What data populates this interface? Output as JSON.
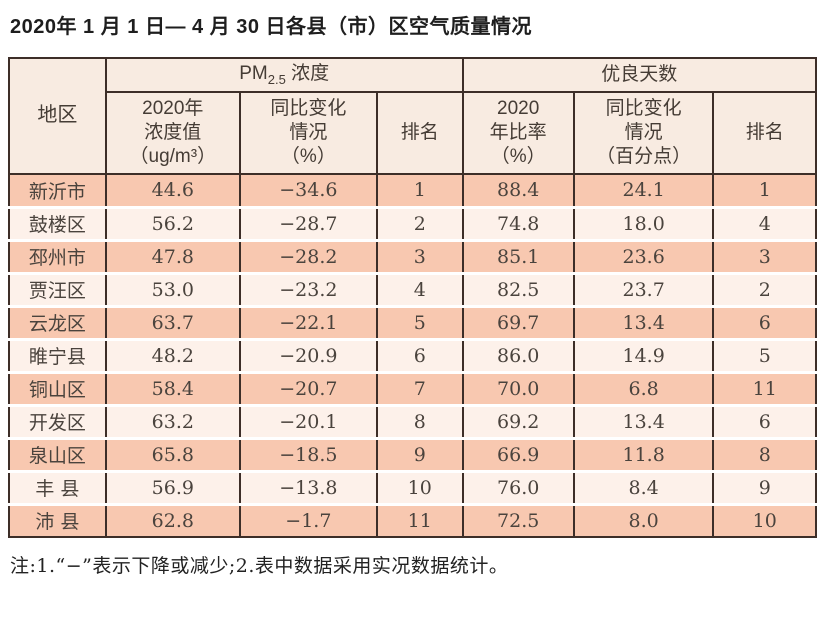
{
  "title": "2020年 1 月 1 日— 4 月 30 日各县（市）区空气质量情况",
  "table": {
    "region_header": "地区",
    "pm_group": {
      "base": "PM",
      "sub": "2.5",
      "label": " 浓度"
    },
    "good_days_header": "优良天数",
    "sub_headers": {
      "pm_value": "2020年\n浓度值\n（ug/m³）",
      "pm_change": "同比变化\n情况\n（%）",
      "pm_rank": "排名",
      "days_rate": "2020\n年比率\n（%）",
      "days_change": "同比变化\n情况\n（百分点）",
      "days_rank": "排名"
    },
    "rows": [
      {
        "region": "新沂市",
        "pm_value": "44.6",
        "pm_change": "−34.6",
        "pm_rank": "1",
        "days_rate": "88.4",
        "days_change": "24.1",
        "days_rank": "1"
      },
      {
        "region": "鼓楼区",
        "pm_value": "56.2",
        "pm_change": "−28.7",
        "pm_rank": "2",
        "days_rate": "74.8",
        "days_change": "18.0",
        "days_rank": "4"
      },
      {
        "region": "邳州市",
        "pm_value": "47.8",
        "pm_change": "−28.2",
        "pm_rank": "3",
        "days_rate": "85.1",
        "days_change": "23.6",
        "days_rank": "3"
      },
      {
        "region": "贾汪区",
        "pm_value": "53.0",
        "pm_change": "−23.2",
        "pm_rank": "4",
        "days_rate": "82.5",
        "days_change": "23.7",
        "days_rank": "2"
      },
      {
        "region": "云龙区",
        "pm_value": "63.7",
        "pm_change": "−22.1",
        "pm_rank": "5",
        "days_rate": "69.7",
        "days_change": "13.4",
        "days_rank": "6"
      },
      {
        "region": "睢宁县",
        "pm_value": "48.2",
        "pm_change": "−20.9",
        "pm_rank": "6",
        "days_rate": "86.0",
        "days_change": "14.9",
        "days_rank": "5"
      },
      {
        "region": "铜山区",
        "pm_value": "58.4",
        "pm_change": "−20.7",
        "pm_rank": "7",
        "days_rate": "70.0",
        "days_change": "6.8",
        "days_rank": "11"
      },
      {
        "region": "开发区",
        "pm_value": "63.2",
        "pm_change": "−20.1",
        "pm_rank": "8",
        "days_rate": "69.2",
        "days_change": "13.4",
        "days_rank": "6"
      },
      {
        "region": "泉山区",
        "pm_value": "65.8",
        "pm_change": "−18.5",
        "pm_rank": "9",
        "days_rate": "66.9",
        "days_change": "11.8",
        "days_rank": "8"
      },
      {
        "region": "丰 县",
        "pm_value": "56.9",
        "pm_change": "−13.8",
        "pm_rank": "10",
        "days_rate": "76.0",
        "days_change": "8.4",
        "days_rank": "9"
      },
      {
        "region": "沛 县",
        "pm_value": "62.8",
        "pm_change": "−1.7",
        "pm_rank": "11",
        "days_rate": "72.5",
        "days_change": "8.0",
        "days_rank": "10"
      }
    ]
  },
  "footnote": "注:1.“−”表示下降或减少;2.表中数据采用实况数据统计。",
  "colors": {
    "row_odd": "#f8c8b0",
    "row_even": "#fdf1ea",
    "header_bg": "#f8ebe1",
    "border": "#3d2e28",
    "text": "#4a433d"
  }
}
